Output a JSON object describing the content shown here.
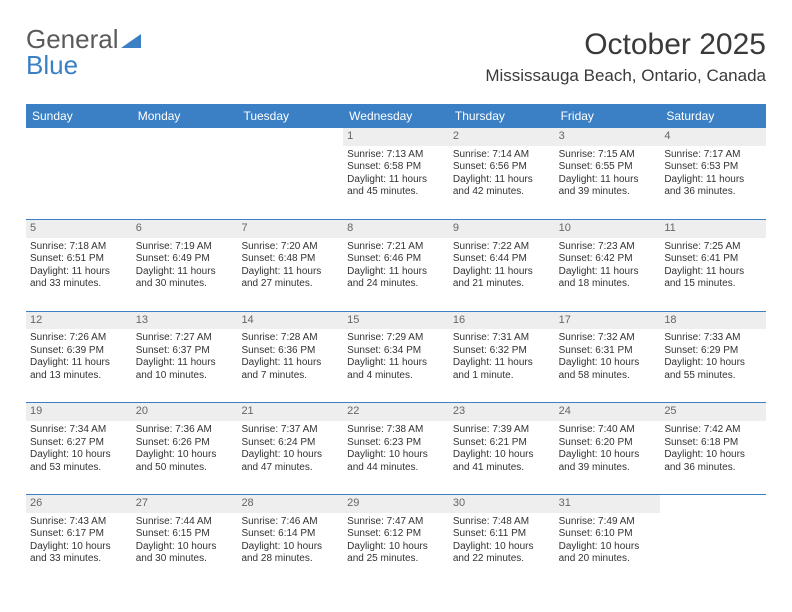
{
  "logo": {
    "text1": "General",
    "text2": "Blue"
  },
  "title": "October 2025",
  "subtitle": "Mississauga Beach, Ontario, Canada",
  "colors": {
    "header_bg": "#3b7fc4",
    "header_text": "#ffffff",
    "daynum_bg": "#eeeeee",
    "daynum_text": "#666666",
    "body_text": "#333333",
    "divider": "#3b7fc4",
    "page_bg": "#ffffff"
  },
  "days_of_week": [
    "Sunday",
    "Monday",
    "Tuesday",
    "Wednesday",
    "Thursday",
    "Friday",
    "Saturday"
  ],
  "weeks": [
    [
      {
        "n": "",
        "sunrise": "",
        "sunset": "",
        "daylight": ""
      },
      {
        "n": "",
        "sunrise": "",
        "sunset": "",
        "daylight": ""
      },
      {
        "n": "",
        "sunrise": "",
        "sunset": "",
        "daylight": ""
      },
      {
        "n": "1",
        "sunrise": "Sunrise: 7:13 AM",
        "sunset": "Sunset: 6:58 PM",
        "daylight": "Daylight: 11 hours and 45 minutes."
      },
      {
        "n": "2",
        "sunrise": "Sunrise: 7:14 AM",
        "sunset": "Sunset: 6:56 PM",
        "daylight": "Daylight: 11 hours and 42 minutes."
      },
      {
        "n": "3",
        "sunrise": "Sunrise: 7:15 AM",
        "sunset": "Sunset: 6:55 PM",
        "daylight": "Daylight: 11 hours and 39 minutes."
      },
      {
        "n": "4",
        "sunrise": "Sunrise: 7:17 AM",
        "sunset": "Sunset: 6:53 PM",
        "daylight": "Daylight: 11 hours and 36 minutes."
      }
    ],
    [
      {
        "n": "5",
        "sunrise": "Sunrise: 7:18 AM",
        "sunset": "Sunset: 6:51 PM",
        "daylight": "Daylight: 11 hours and 33 minutes."
      },
      {
        "n": "6",
        "sunrise": "Sunrise: 7:19 AM",
        "sunset": "Sunset: 6:49 PM",
        "daylight": "Daylight: 11 hours and 30 minutes."
      },
      {
        "n": "7",
        "sunrise": "Sunrise: 7:20 AM",
        "sunset": "Sunset: 6:48 PM",
        "daylight": "Daylight: 11 hours and 27 minutes."
      },
      {
        "n": "8",
        "sunrise": "Sunrise: 7:21 AM",
        "sunset": "Sunset: 6:46 PM",
        "daylight": "Daylight: 11 hours and 24 minutes."
      },
      {
        "n": "9",
        "sunrise": "Sunrise: 7:22 AM",
        "sunset": "Sunset: 6:44 PM",
        "daylight": "Daylight: 11 hours and 21 minutes."
      },
      {
        "n": "10",
        "sunrise": "Sunrise: 7:23 AM",
        "sunset": "Sunset: 6:42 PM",
        "daylight": "Daylight: 11 hours and 18 minutes."
      },
      {
        "n": "11",
        "sunrise": "Sunrise: 7:25 AM",
        "sunset": "Sunset: 6:41 PM",
        "daylight": "Daylight: 11 hours and 15 minutes."
      }
    ],
    [
      {
        "n": "12",
        "sunrise": "Sunrise: 7:26 AM",
        "sunset": "Sunset: 6:39 PM",
        "daylight": "Daylight: 11 hours and 13 minutes."
      },
      {
        "n": "13",
        "sunrise": "Sunrise: 7:27 AM",
        "sunset": "Sunset: 6:37 PM",
        "daylight": "Daylight: 11 hours and 10 minutes."
      },
      {
        "n": "14",
        "sunrise": "Sunrise: 7:28 AM",
        "sunset": "Sunset: 6:36 PM",
        "daylight": "Daylight: 11 hours and 7 minutes."
      },
      {
        "n": "15",
        "sunrise": "Sunrise: 7:29 AM",
        "sunset": "Sunset: 6:34 PM",
        "daylight": "Daylight: 11 hours and 4 minutes."
      },
      {
        "n": "16",
        "sunrise": "Sunrise: 7:31 AM",
        "sunset": "Sunset: 6:32 PM",
        "daylight": "Daylight: 11 hours and 1 minute."
      },
      {
        "n": "17",
        "sunrise": "Sunrise: 7:32 AM",
        "sunset": "Sunset: 6:31 PM",
        "daylight": "Daylight: 10 hours and 58 minutes."
      },
      {
        "n": "18",
        "sunrise": "Sunrise: 7:33 AM",
        "sunset": "Sunset: 6:29 PM",
        "daylight": "Daylight: 10 hours and 55 minutes."
      }
    ],
    [
      {
        "n": "19",
        "sunrise": "Sunrise: 7:34 AM",
        "sunset": "Sunset: 6:27 PM",
        "daylight": "Daylight: 10 hours and 53 minutes."
      },
      {
        "n": "20",
        "sunrise": "Sunrise: 7:36 AM",
        "sunset": "Sunset: 6:26 PM",
        "daylight": "Daylight: 10 hours and 50 minutes."
      },
      {
        "n": "21",
        "sunrise": "Sunrise: 7:37 AM",
        "sunset": "Sunset: 6:24 PM",
        "daylight": "Daylight: 10 hours and 47 minutes."
      },
      {
        "n": "22",
        "sunrise": "Sunrise: 7:38 AM",
        "sunset": "Sunset: 6:23 PM",
        "daylight": "Daylight: 10 hours and 44 minutes."
      },
      {
        "n": "23",
        "sunrise": "Sunrise: 7:39 AM",
        "sunset": "Sunset: 6:21 PM",
        "daylight": "Daylight: 10 hours and 41 minutes."
      },
      {
        "n": "24",
        "sunrise": "Sunrise: 7:40 AM",
        "sunset": "Sunset: 6:20 PM",
        "daylight": "Daylight: 10 hours and 39 minutes."
      },
      {
        "n": "25",
        "sunrise": "Sunrise: 7:42 AM",
        "sunset": "Sunset: 6:18 PM",
        "daylight": "Daylight: 10 hours and 36 minutes."
      }
    ],
    [
      {
        "n": "26",
        "sunrise": "Sunrise: 7:43 AM",
        "sunset": "Sunset: 6:17 PM",
        "daylight": "Daylight: 10 hours and 33 minutes."
      },
      {
        "n": "27",
        "sunrise": "Sunrise: 7:44 AM",
        "sunset": "Sunset: 6:15 PM",
        "daylight": "Daylight: 10 hours and 30 minutes."
      },
      {
        "n": "28",
        "sunrise": "Sunrise: 7:46 AM",
        "sunset": "Sunset: 6:14 PM",
        "daylight": "Daylight: 10 hours and 28 minutes."
      },
      {
        "n": "29",
        "sunrise": "Sunrise: 7:47 AM",
        "sunset": "Sunset: 6:12 PM",
        "daylight": "Daylight: 10 hours and 25 minutes."
      },
      {
        "n": "30",
        "sunrise": "Sunrise: 7:48 AM",
        "sunset": "Sunset: 6:11 PM",
        "daylight": "Daylight: 10 hours and 22 minutes."
      },
      {
        "n": "31",
        "sunrise": "Sunrise: 7:49 AM",
        "sunset": "Sunset: 6:10 PM",
        "daylight": "Daylight: 10 hours and 20 minutes."
      },
      {
        "n": "",
        "sunrise": "",
        "sunset": "",
        "daylight": ""
      }
    ]
  ]
}
